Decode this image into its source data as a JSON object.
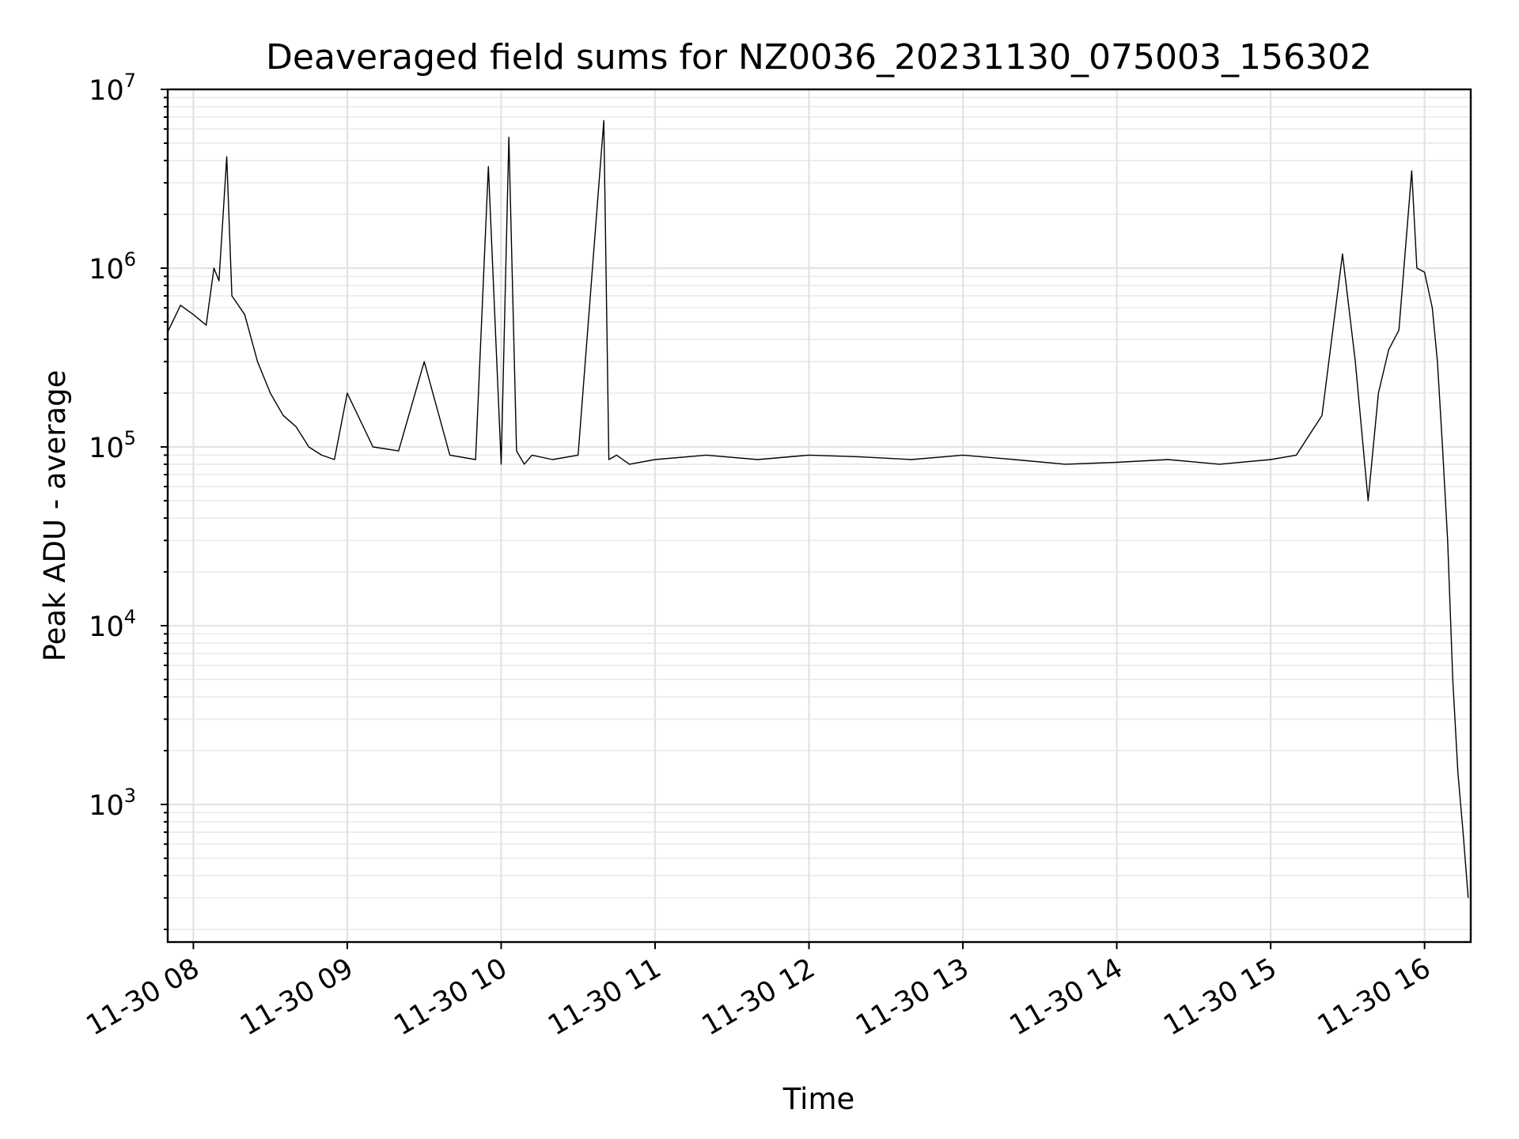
{
  "chart_data": {
    "type": "line",
    "title": "Deaveraged field sums for NZ0036_20231130_075003_156302",
    "xlabel": "Time",
    "ylabel": "Peak ADU - average",
    "y_scale": "log",
    "ylim": [
      170,
      10000000
    ],
    "xlim": [
      "2023-11-30 07:50",
      "2023-11-30 16:18"
    ],
    "x_ticks": [
      {
        "value": "2023-11-30 08:00",
        "label": "11-30 08"
      },
      {
        "value": "2023-11-30 09:00",
        "label": "11-30 09"
      },
      {
        "value": "2023-11-30 10:00",
        "label": "11-30 10"
      },
      {
        "value": "2023-11-30 11:00",
        "label": "11-30 11"
      },
      {
        "value": "2023-11-30 12:00",
        "label": "11-30 12"
      },
      {
        "value": "2023-11-30 13:00",
        "label": "11-30 13"
      },
      {
        "value": "2023-11-30 14:00",
        "label": "11-30 14"
      },
      {
        "value": "2023-11-30 15:00",
        "label": "11-30 15"
      },
      {
        "value": "2023-11-30 16:00",
        "label": "11-30 16"
      }
    ],
    "y_ticks": [
      {
        "value": 1000,
        "base": "10",
        "exp": "3"
      },
      {
        "value": 10000,
        "base": "10",
        "exp": "4"
      },
      {
        "value": 100000,
        "base": "10",
        "exp": "5"
      },
      {
        "value": 1000000,
        "base": "10",
        "exp": "6"
      },
      {
        "value": 10000000,
        "base": "10",
        "exp": "7"
      }
    ],
    "grid": true,
    "line_color": "#000000",
    "series": [
      {
        "x": [
          "2023-11-30 07:50",
          "2023-11-30 07:55",
          "2023-11-30 08:00",
          "2023-11-30 08:05",
          "2023-11-30 08:08",
          "2023-11-30 08:10",
          "2023-11-30 08:13",
          "2023-11-30 08:15",
          "2023-11-30 08:20",
          "2023-11-30 08:25",
          "2023-11-30 08:30",
          "2023-11-30 08:35",
          "2023-11-30 08:40",
          "2023-11-30 08:45",
          "2023-11-30 08:50",
          "2023-11-30 08:55",
          "2023-11-30 09:00",
          "2023-11-30 09:10",
          "2023-11-30 09:20",
          "2023-11-30 09:30",
          "2023-11-30 09:40",
          "2023-11-30 09:50",
          "2023-11-30 09:55",
          "2023-11-30 10:00",
          "2023-11-30 10:03",
          "2023-11-30 10:06",
          "2023-11-30 10:09",
          "2023-11-30 10:12",
          "2023-11-30 10:20",
          "2023-11-30 10:30",
          "2023-11-30 10:40",
          "2023-11-30 10:42",
          "2023-11-30 10:45",
          "2023-11-30 10:50",
          "2023-11-30 11:00",
          "2023-11-30 11:20",
          "2023-11-30 11:40",
          "2023-11-30 12:00",
          "2023-11-30 12:20",
          "2023-11-30 12:40",
          "2023-11-30 13:00",
          "2023-11-30 13:20",
          "2023-11-30 13:40",
          "2023-11-30 14:00",
          "2023-11-30 14:20",
          "2023-11-30 14:40",
          "2023-11-30 15:00",
          "2023-11-30 15:10",
          "2023-11-30 15:20",
          "2023-11-30 15:28",
          "2023-11-30 15:33",
          "2023-11-30 15:38",
          "2023-11-30 15:42",
          "2023-11-30 15:46",
          "2023-11-30 15:50",
          "2023-11-30 15:55",
          "2023-11-30 15:57",
          "2023-11-30 16:00",
          "2023-11-30 16:03",
          "2023-11-30 16:05",
          "2023-11-30 16:07",
          "2023-11-30 16:09",
          "2023-11-30 16:11",
          "2023-11-30 16:13",
          "2023-11-30 16:15",
          "2023-11-30 16:17"
        ],
        "y": [
          440000,
          620000,
          550000,
          480000,
          1000000,
          850000,
          4200000,
          700000,
          550000,
          300000,
          200000,
          150000,
          130000,
          100000,
          90000,
          85000,
          200000,
          100000,
          95000,
          300000,
          90000,
          85000,
          3700000,
          80000,
          5400000,
          95000,
          80000,
          90000,
          85000,
          90000,
          6700000,
          85000,
          90000,
          80000,
          85000,
          90000,
          85000,
          90000,
          88000,
          85000,
          90000,
          85000,
          80000,
          82000,
          85000,
          80000,
          85000,
          90000,
          150000,
          1200000,
          300000,
          50000,
          200000,
          350000,
          450000,
          3500000,
          1000000,
          950000,
          600000,
          300000,
          100000,
          30000,
          5000,
          1500,
          700,
          300
        ]
      }
    ],
    "annotations": []
  }
}
